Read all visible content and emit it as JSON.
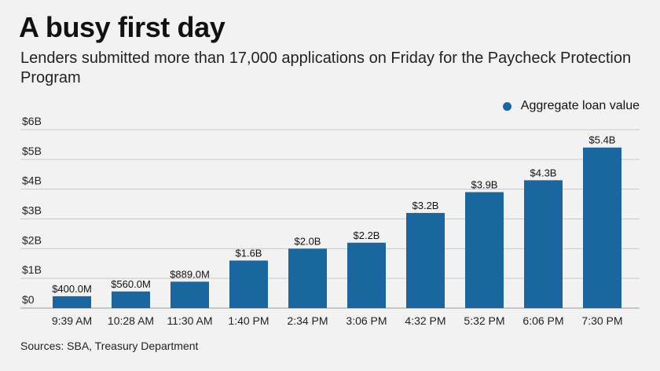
{
  "header": {
    "title": "A busy first day",
    "subtitle": "Lenders submitted more than 17,000 applications on Friday for the Paycheck Protection Program"
  },
  "legend": {
    "label": "Aggregate loan value"
  },
  "footer": {
    "source": "Sources: SBA, Treasury Department"
  },
  "colors": {
    "bar": "#1a67a0",
    "grid": "#c9c9c9",
    "background": "#f1f2f1"
  },
  "chart_data": {
    "type": "bar",
    "title": "A busy first day",
    "subtitle": "Lenders submitted more than 17,000 applications on Friday for the Paycheck Protection Program",
    "xlabel": "",
    "ylabel": "",
    "categories": [
      "9:39 AM",
      "10:28 AM",
      "11:30 AM",
      "1:40 PM",
      "2:34 PM",
      "3:06 PM",
      "4:32 PM",
      "5:32 PM",
      "6:06 PM",
      "7:30 PM"
    ],
    "series": [
      {
        "name": "Aggregate loan value",
        "values": [
          0.4,
          0.56,
          0.889,
          1.6,
          2.0,
          2.2,
          3.2,
          3.9,
          4.3,
          5.4
        ]
      }
    ],
    "data_labels": [
      "$400.0M",
      "$560.0M",
      "$889.0M",
      "$1.6B",
      "$2.0B",
      "$2.2B",
      "$3.2B",
      "$3.9B",
      "$4.3B",
      "$5.4B"
    ],
    "ylim": [
      0,
      6
    ],
    "yticks": [
      0,
      1,
      2,
      3,
      4,
      5,
      6
    ],
    "ytick_labels": [
      "$0",
      "$1B",
      "$2B",
      "$3B",
      "$4B",
      "$5B",
      "$6B"
    ],
    "grid": true,
    "legend_position": "top-right"
  }
}
